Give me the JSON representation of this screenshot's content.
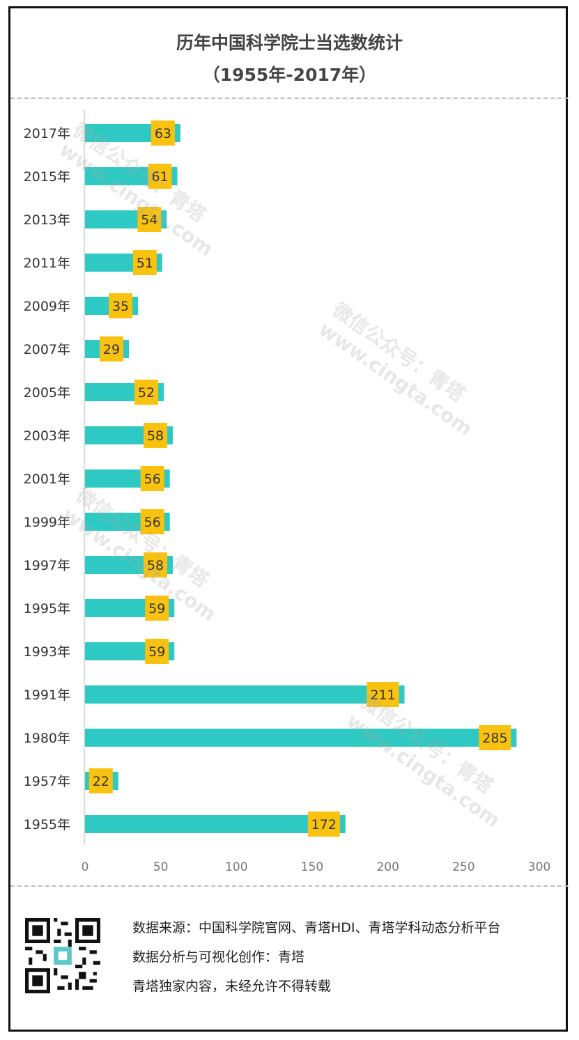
{
  "title_line1": "历年中国科学院士当选数统计",
  "title_line2": "（1955年-2017年）",
  "chart_data": {
    "type": "bar",
    "orientation": "horizontal",
    "categories": [
      "2017年",
      "2015年",
      "2013年",
      "2011年",
      "2009年",
      "2007年",
      "2005年",
      "2003年",
      "2001年",
      "1999年",
      "1997年",
      "1995年",
      "1993年",
      "1991年",
      "1980年",
      "1957年",
      "1955年"
    ],
    "values": [
      63,
      61,
      54,
      51,
      35,
      29,
      52,
      58,
      56,
      56,
      58,
      59,
      59,
      211,
      285,
      22,
      172
    ],
    "xlim": [
      0,
      300
    ],
    "xticks": [
      0,
      50,
      100,
      150,
      200,
      250,
      300
    ],
    "bar_color": "#2ec9c2",
    "label_color": "#f9c20f",
    "grid": false
  },
  "source": {
    "line1": "数据来源：中国科学院官网、青塔HDI、青塔学科动态分析平台",
    "line2": "数据分析与可视化创作：青塔",
    "line3": "青塔独家内容，未经允许不得转载"
  },
  "watermark": {
    "line1": "微信公众号：青塔",
    "line2": "www.cingta.com"
  }
}
